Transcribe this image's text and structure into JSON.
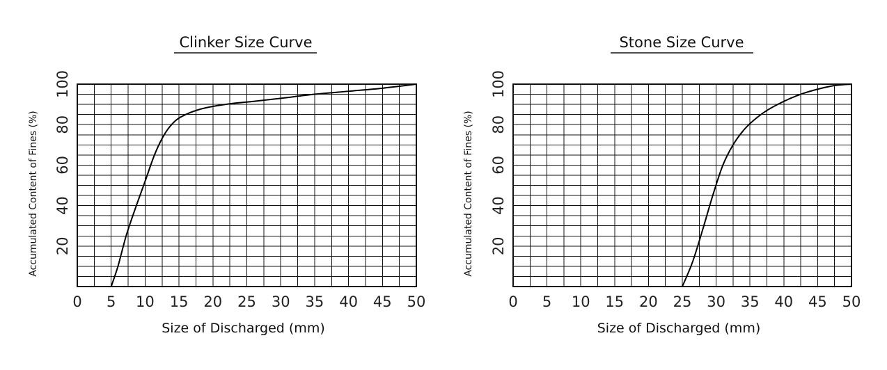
{
  "chart_data": [
    {
      "type": "line",
      "title": "Clinker Size Curve",
      "xlabel": "Size of Discharged (mm)",
      "ylabel": "Accumulated Content of Fines (%)",
      "xlim": [
        0,
        50
      ],
      "ylim": [
        0,
        100
      ],
      "x_ticks": [
        0,
        5,
        10,
        15,
        20,
        25,
        30,
        35,
        40,
        45,
        50
      ],
      "y_ticks": [
        20,
        40,
        60,
        80,
        100
      ],
      "grid": true,
      "series": [
        {
          "x": [
            5.0,
            6.0,
            7.2,
            8.5,
            10.0,
            11.5,
            13.0,
            14.5,
            16.0,
            18.0,
            20.0,
            23.0,
            26.0,
            30.0,
            35.0,
            40.0,
            45.0,
            50.0
          ],
          "y": [
            0,
            10,
            25,
            38,
            52,
            66,
            76,
            82,
            85,
            87.5,
            89,
            90.5,
            91.5,
            93,
            95,
            96.5,
            98,
            100
          ]
        }
      ]
    },
    {
      "type": "line",
      "title": "Stone Size Curve",
      "xlabel": "Size of Discharged (mm)",
      "ylabel": "Accumulated Content of Fines (%)",
      "xlim": [
        0,
        50
      ],
      "ylim": [
        0,
        100
      ],
      "x_ticks": [
        0,
        5,
        10,
        15,
        20,
        25,
        30,
        35,
        40,
        45,
        50
      ],
      "y_ticks": [
        20,
        40,
        60,
        80,
        100
      ],
      "grid": true,
      "series": [
        {
          "x": [
            25.0,
            26.5,
            28.0,
            29.5,
            31.0,
            32.5,
            34.0,
            35.5,
            37.5,
            40.0,
            42.5,
            45.0,
            47.5,
            50.0
          ],
          "y": [
            0,
            12,
            28,
            45,
            60,
            70,
            77,
            82,
            87,
            91.5,
            95,
            97.5,
            99.3,
            100
          ]
        }
      ]
    }
  ]
}
